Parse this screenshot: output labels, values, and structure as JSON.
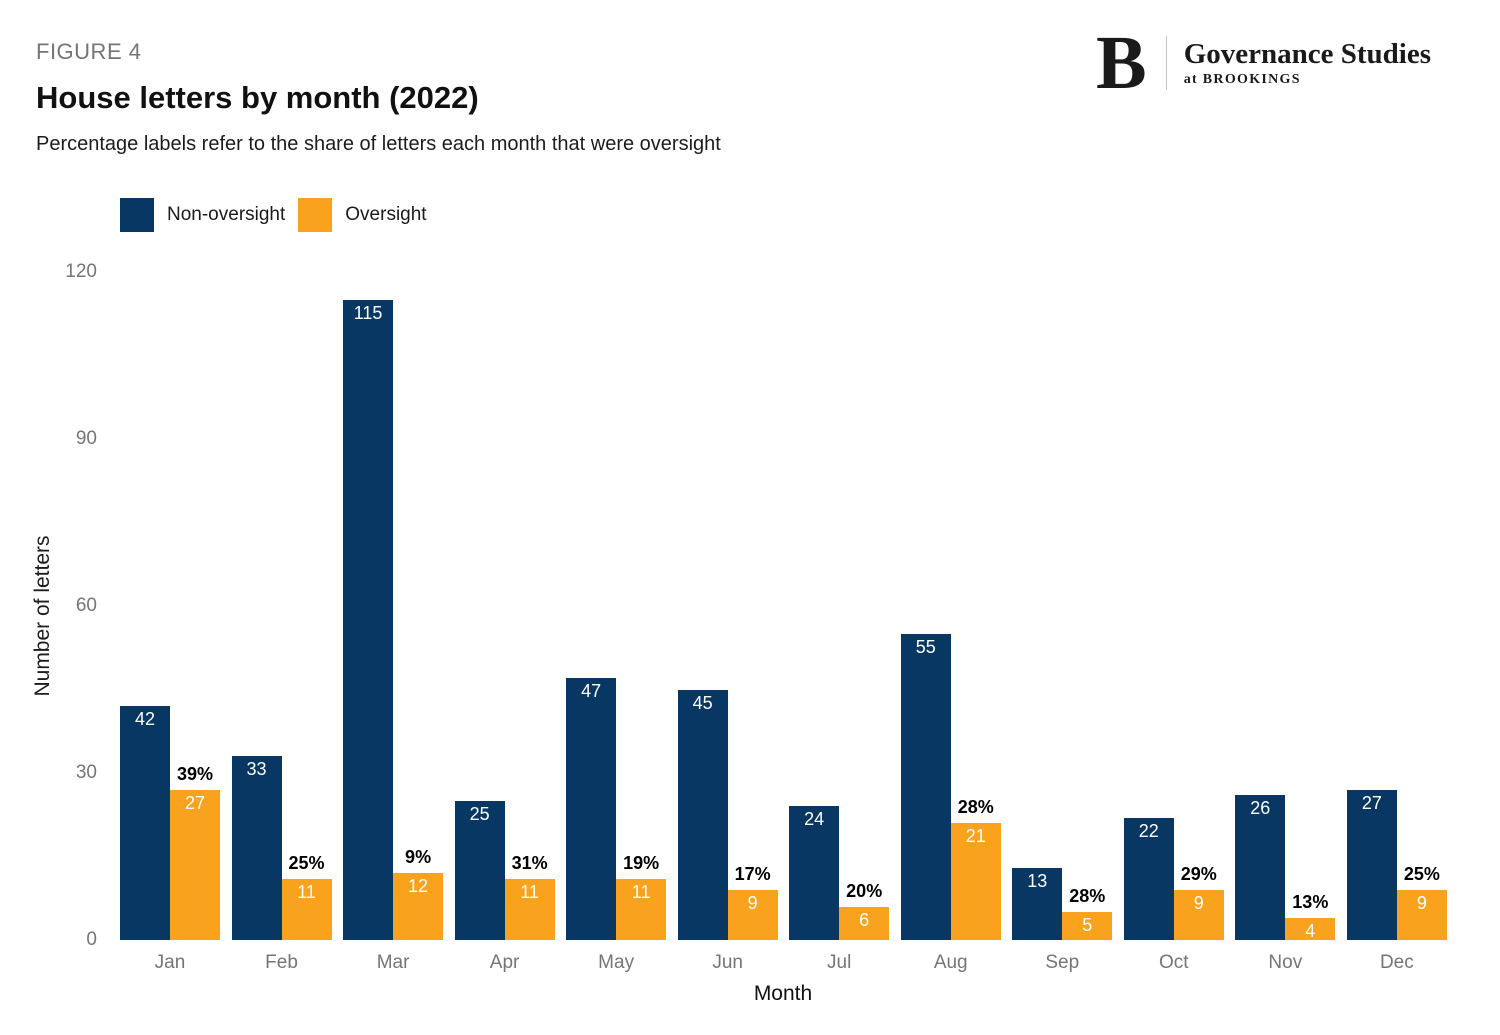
{
  "header": {
    "figure_label": "FIGURE 4",
    "title": "House letters by month (2022)",
    "subtitle": "Percentage labels refer to the share of letters each month that were oversight"
  },
  "logo": {
    "letter": "B",
    "name": "Governance Studies",
    "sub": "at BROOKINGS"
  },
  "colors": {
    "non_oversight": "#083763",
    "oversight": "#F9A21D",
    "axis_text": "#757575",
    "pct_label": "#000000",
    "bar_value_label": "#FFFFFF"
  },
  "chart_data": {
    "type": "bar",
    "title": "House letters by month (2022)",
    "xlabel": "Month",
    "ylabel": "Number of letters",
    "categories": [
      "Jan",
      "Feb",
      "Mar",
      "Apr",
      "May",
      "Jun",
      "Jul",
      "Aug",
      "Sep",
      "Oct",
      "Nov",
      "Dec"
    ],
    "series": [
      {
        "name": "Non-oversight",
        "color": "#083763",
        "values": [
          42,
          33,
          115,
          25,
          47,
          45,
          24,
          55,
          13,
          22,
          26,
          27
        ]
      },
      {
        "name": "Oversight",
        "color": "#F9A21D",
        "values": [
          27,
          11,
          12,
          11,
          11,
          9,
          6,
          21,
          5,
          9,
          4,
          9
        ]
      }
    ],
    "oversight_pct_labels": [
      "39%",
      "25%",
      "9%",
      "31%",
      "19%",
      "17%",
      "20%",
      "28%",
      "28%",
      "29%",
      "13%",
      "25%"
    ],
    "yticks": [
      0,
      30,
      60,
      90,
      120
    ],
    "ylim": [
      0,
      120
    ],
    "grid": false,
    "legend_position": "top-left"
  }
}
